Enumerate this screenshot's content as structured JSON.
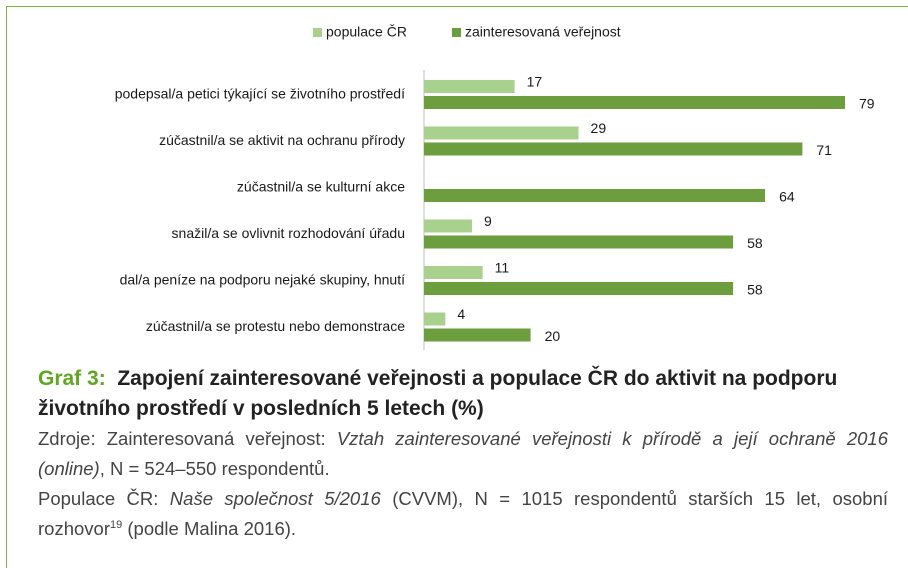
{
  "chart_data": {
    "type": "hbar",
    "legend": "top",
    "categories": [
      "podepsal/a petici týkající se životního prostředí",
      "zúčastnil/a se aktivit na ochranu přírody",
      "zúčastnil/a se kulturní akce",
      "snažil/a se ovlivnit rozhodování úřadu",
      "dal/a peníze na podporu nejaké skupiny, hnutí",
      "zúčastnil/a se protestu nebo demonstrace"
    ],
    "series": [
      {
        "name": "populace ČR",
        "color": "#a9d18e",
        "values": [
          17,
          29,
          null,
          9,
          11,
          4
        ]
      },
      {
        "name": "zainteresovaná veřejnost",
        "color": "#6c9e3f",
        "values": [
          79,
          71,
          64,
          58,
          58,
          20
        ]
      }
    ]
  },
  "caption": {
    "label": "Graf 3:",
    "title": "Zapojení zainteresované veřejnosti a populace ČR do aktivit na podporu životního prostředí v posledních 5 letech (%)",
    "sources": [
      [
        {
          "text": "Zdroje: Zainteresovaná veřejnost: ",
          "style": "normal"
        },
        {
          "text": "Vztah zainteresované veřejnosti k přírodě a její ochraně 2016 (online)",
          "style": "italic"
        },
        {
          "text": ", N = 524–550 respondentů.",
          "style": "normal"
        }
      ],
      [
        {
          "text": "Populace ČR: ",
          "style": "normal"
        },
        {
          "text": "Naše společnost 5/2016",
          "style": "italic"
        },
        {
          "text": " (CVVM), N = 1015 respondentů starších 15 let, osobní rozhovor",
          "style": "normal"
        },
        {
          "text": "19",
          "style": "sup"
        },
        {
          "text": " (podle Malina 2016).",
          "style": "normal"
        }
      ]
    ]
  }
}
